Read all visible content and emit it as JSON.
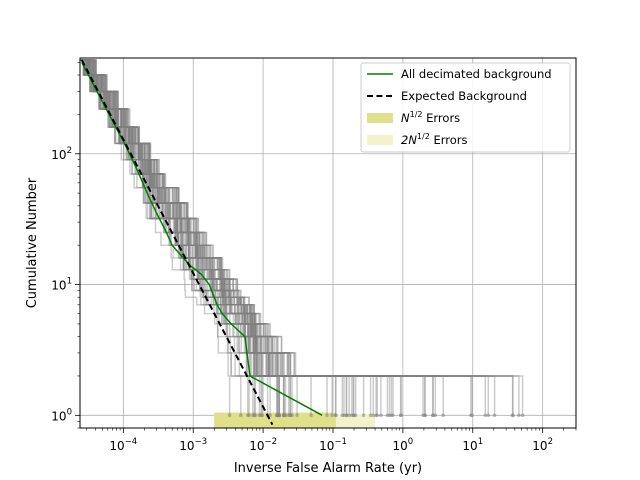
{
  "chart_data": {
    "type": "line",
    "title": "",
    "xlabel": "Inverse False Alarm Rate (yr)",
    "ylabel": "Cumulative Number",
    "xscale": "log",
    "yscale": "log",
    "xlim": [
      2.4e-05,
      300
    ],
    "ylim": [
      0.8,
      540
    ],
    "grid": true,
    "legend_position": "top-right",
    "x_ticks": [
      {
        "value": 0.0001,
        "base": "10",
        "exp": "−4"
      },
      {
        "value": 0.001,
        "base": "10",
        "exp": "−3"
      },
      {
        "value": 0.01,
        "base": "10",
        "exp": "−2"
      },
      {
        "value": 0.1,
        "base": "10",
        "exp": "−1"
      },
      {
        "value": 1,
        "base": "10",
        "exp": "0"
      },
      {
        "value": 10,
        "base": "10",
        "exp": "1"
      },
      {
        "value": 100,
        "base": "10",
        "exp": "2"
      }
    ],
    "y_ticks": [
      {
        "value": 1,
        "base": "10",
        "exp": "0"
      },
      {
        "value": 10,
        "base": "10",
        "exp": "1"
      },
      {
        "value": 100,
        "base": "10",
        "exp": "2"
      }
    ],
    "legend": [
      {
        "label": "All decimated background",
        "style": "line",
        "color": "#008000"
      },
      {
        "label": "Expected Background",
        "style": "dashed",
        "color": "#000000"
      },
      {
        "label_main": "N",
        "label_sup": "1/2",
        "label_rest": " Errors",
        "style": "patch",
        "color": "#e0e08a"
      },
      {
        "label_main": "2N",
        "label_sup": "1/2",
        "label_rest": " Errors",
        "style": "patch",
        "color": "#f2f2cc"
      }
    ],
    "series": [
      {
        "name": "All decimated background",
        "color": "#008000",
        "x": [
          2.55e-05,
          5e-05,
          0.0001,
          0.00015,
          0.00022,
          0.0003,
          0.0004,
          0.0005,
          0.00065,
          0.0009,
          0.0013,
          0.0017,
          0.0022,
          0.0026,
          0.0035,
          0.0055,
          0.0065,
          0.07
        ],
        "y": [
          500,
          250,
          125,
          80,
          50,
          35,
          26,
          20,
          17,
          14,
          12,
          10,
          7,
          6,
          5,
          4,
          2,
          1
        ]
      },
      {
        "name": "Expected Background",
        "color": "#000000",
        "x": [
          2.55e-05,
          0.0136
        ],
        "y": [
          520,
          0.85
        ]
      }
    ],
    "background_trials": {
      "count": 70,
      "color": "#808080",
      "alpha": 0.4,
      "final_x_range": [
        0.002,
        60
      ]
    },
    "error_bands": [
      {
        "label": "N^1/2",
        "color": "#e0e08a",
        "x": [
          0.002,
          0.11
        ],
        "y": [
          0.8,
          1.05
        ]
      },
      {
        "label": "2N^1/2",
        "color": "#f2f2cc",
        "x": [
          0.002,
          0.4
        ],
        "y": [
          0.8,
          1.02
        ]
      }
    ]
  }
}
